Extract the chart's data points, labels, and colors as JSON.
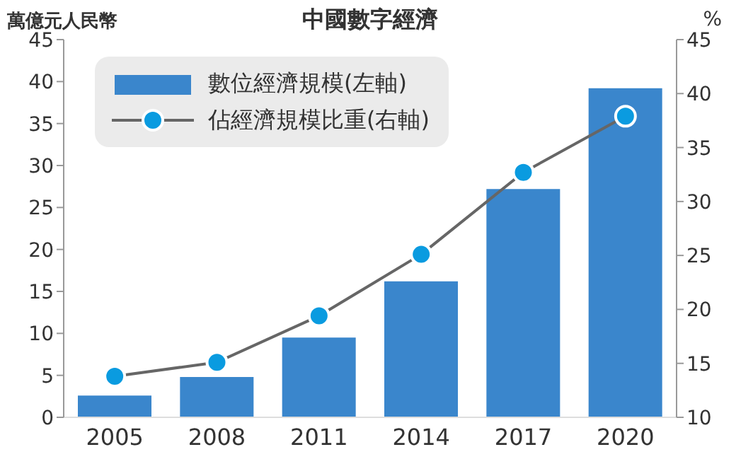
{
  "chart_data": {
    "type": "bar",
    "title": "中國數字經濟",
    "ylabel": "萬億元人民幣",
    "y2label": "%",
    "categories": [
      "2005",
      "2008",
      "2011",
      "2014",
      "2017",
      "2020"
    ],
    "series": [
      {
        "name": "數位經濟規模(左軸)",
        "color": "#3a86cc",
        "values": [
          2.6,
          4.8,
          9.5,
          16.2,
          27.2,
          39.2
        ]
      },
      {
        "name": "佔經濟規模比重(右軸)",
        "type": "line",
        "axis": "y2",
        "color": "#666666",
        "marker": "circle",
        "values": [
          13.8,
          15.1,
          19.4,
          25.1,
          32.7,
          37.9
        ]
      }
    ],
    "ylim": [
      0,
      45
    ],
    "yticks": [
      0,
      5,
      10,
      15,
      20,
      25,
      30,
      35,
      40,
      45
    ],
    "y2lim": [
      10,
      45
    ],
    "y2ticks": [
      10,
      15,
      20,
      25,
      30,
      35,
      40,
      45
    ],
    "grid": false,
    "legend": "top left"
  }
}
